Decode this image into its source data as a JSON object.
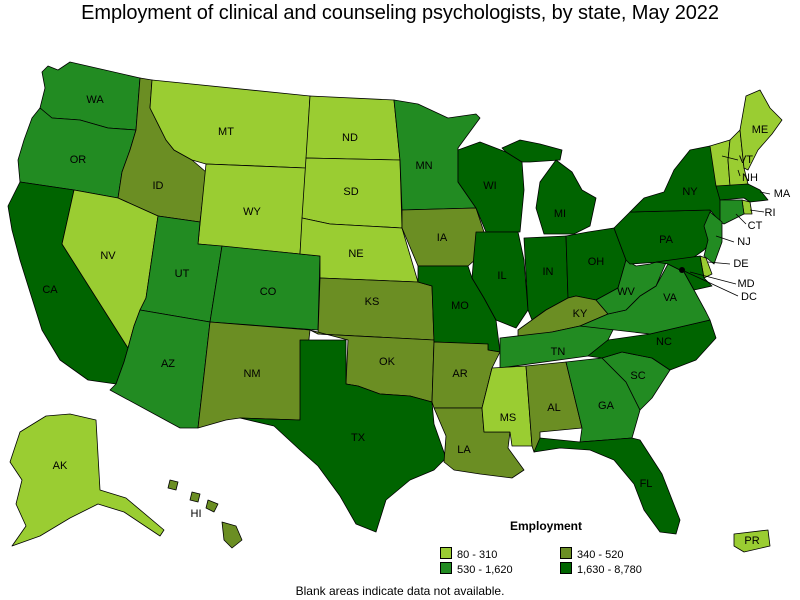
{
  "title": "Employment of clinical and counseling psychologists, by state, May 2022",
  "colors": {
    "c1": "#9ACD32",
    "c2": "#6B8E23",
    "c3": "#228B22",
    "c4": "#006400"
  },
  "legend": {
    "title": "Employment",
    "items": [
      {
        "label": "80 - 310",
        "color": "#9ACD32"
      },
      {
        "label": "340 - 520",
        "color": "#6B8E23"
      },
      {
        "label": "530 - 1,620",
        "color": "#228B22"
      },
      {
        "label": "1,630 - 8,780",
        "color": "#006400"
      }
    ]
  },
  "footnote": "Blank areas indicate data not available.",
  "states": [
    {
      "abbr": "WA",
      "class": "c3"
    },
    {
      "abbr": "OR",
      "class": "c3"
    },
    {
      "abbr": "CA",
      "class": "c4"
    },
    {
      "abbr": "ID",
      "class": "c2"
    },
    {
      "abbr": "NV",
      "class": "c1"
    },
    {
      "abbr": "MT",
      "class": "c1"
    },
    {
      "abbr": "WY",
      "class": "c1"
    },
    {
      "abbr": "UT",
      "class": "c3"
    },
    {
      "abbr": "AZ",
      "class": "c3"
    },
    {
      "abbr": "CO",
      "class": "c3"
    },
    {
      "abbr": "NM",
      "class": "c2"
    },
    {
      "abbr": "ND",
      "class": "c1"
    },
    {
      "abbr": "SD",
      "class": "c1"
    },
    {
      "abbr": "NE",
      "class": "c1"
    },
    {
      "abbr": "KS",
      "class": "c2"
    },
    {
      "abbr": "OK",
      "class": "c2"
    },
    {
      "abbr": "TX",
      "class": "c4"
    },
    {
      "abbr": "MN",
      "class": "c3"
    },
    {
      "abbr": "IA",
      "class": "c2"
    },
    {
      "abbr": "MO",
      "class": "c4"
    },
    {
      "abbr": "AR",
      "class": "c2"
    },
    {
      "abbr": "LA",
      "class": "c2"
    },
    {
      "abbr": "WI",
      "class": "c4"
    },
    {
      "abbr": "IL",
      "class": "c4"
    },
    {
      "abbr": "MI",
      "class": "c4"
    },
    {
      "abbr": "IN",
      "class": "c4"
    },
    {
      "abbr": "OH",
      "class": "c4"
    },
    {
      "abbr": "KY",
      "class": "c2"
    },
    {
      "abbr": "TN",
      "class": "c3"
    },
    {
      "abbr": "MS",
      "class": "c1"
    },
    {
      "abbr": "AL",
      "class": "c2"
    },
    {
      "abbr": "GA",
      "class": "c3"
    },
    {
      "abbr": "FL",
      "class": "c4"
    },
    {
      "abbr": "SC",
      "class": "c3"
    },
    {
      "abbr": "NC",
      "class": "c4"
    },
    {
      "abbr": "VA",
      "class": "c3"
    },
    {
      "abbr": "WV",
      "class": "c3"
    },
    {
      "abbr": "PA",
      "class": "c4"
    },
    {
      "abbr": "NY",
      "class": "c4"
    },
    {
      "abbr": "VT",
      "class": "c1"
    },
    {
      "abbr": "NH",
      "class": "c1"
    },
    {
      "abbr": "ME",
      "class": "c1"
    },
    {
      "abbr": "MA",
      "class": "c4"
    },
    {
      "abbr": "RI",
      "class": "c1"
    },
    {
      "abbr": "CT",
      "class": "c3"
    },
    {
      "abbr": "NJ",
      "class": "c3"
    },
    {
      "abbr": "DE",
      "class": "c1"
    },
    {
      "abbr": "MD",
      "class": "c4"
    },
    {
      "abbr": "DC",
      "class": "c4"
    },
    {
      "abbr": "AK",
      "class": "c1"
    },
    {
      "abbr": "HI",
      "class": "c2"
    },
    {
      "abbr": "PR",
      "class": "c1"
    }
  ]
}
